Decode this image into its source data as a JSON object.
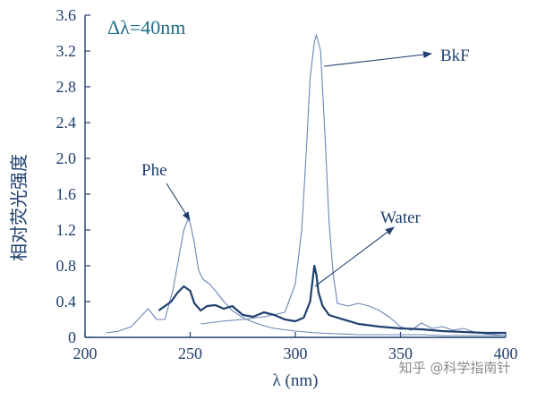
{
  "chart_data": {
    "type": "line",
    "annotation_title": "Δλ=40nm",
    "xlabel": "λ (nm)",
    "ylabel": "相对荧光强度",
    "xlim": [
      200,
      400
    ],
    "ylim": [
      0,
      3.6
    ],
    "x_ticks": [
      200,
      250,
      300,
      350,
      400
    ],
    "y_ticks": [
      0,
      0.4,
      0.8,
      1.2,
      1.6,
      2.0,
      2.4,
      2.8,
      3.2,
      3.6
    ],
    "x_tick_labels": [
      "200",
      "250",
      "300",
      "350",
      "400"
    ],
    "y_tick_labels": [
      "0",
      "0.4",
      "0.8",
      "1.2",
      "1.6",
      "2.0",
      "2.4",
      "2.8",
      "3.2",
      "3.6"
    ],
    "series": [
      {
        "name": "Phe",
        "color": "#6b86b5",
        "width": 1.1,
        "x": [
          210,
          216,
          222,
          226,
          230,
          234,
          238,
          242,
          245,
          247,
          249,
          250,
          252,
          254,
          256,
          259,
          262,
          266,
          270,
          275,
          280,
          285,
          290,
          300,
          310,
          320,
          330,
          340,
          350,
          360,
          370,
          380,
          390,
          400
        ],
        "y": [
          0.05,
          0.07,
          0.12,
          0.22,
          0.32,
          0.2,
          0.2,
          0.55,
          0.95,
          1.2,
          1.32,
          1.28,
          1.05,
          0.75,
          0.65,
          0.6,
          0.52,
          0.4,
          0.3,
          0.22,
          0.17,
          0.13,
          0.1,
          0.07,
          0.05,
          0.04,
          0.03,
          0.03,
          0.03,
          0.03,
          0.02,
          0.02,
          0.02,
          0.02
        ]
      },
      {
        "name": "BkF",
        "color": "#6b86b5",
        "width": 1.1,
        "x": [
          255,
          265,
          275,
          285,
          295,
          300,
          303,
          305,
          307,
          309,
          310,
          312,
          314,
          316,
          318,
          320,
          325,
          330,
          335,
          340,
          345,
          350,
          355,
          360,
          365,
          370,
          375,
          380,
          385,
          390,
          395,
          400
        ],
        "y": [
          0.15,
          0.18,
          0.2,
          0.23,
          0.28,
          0.6,
          1.2,
          2.0,
          2.9,
          3.3,
          3.38,
          3.2,
          2.3,
          1.3,
          0.7,
          0.38,
          0.35,
          0.38,
          0.35,
          0.3,
          0.22,
          0.12,
          0.08,
          0.16,
          0.1,
          0.12,
          0.08,
          0.1,
          0.06,
          0.04,
          0.03,
          0.02
        ]
      },
      {
        "name": "Water",
        "color": "#1f3f6e",
        "width": 2.2,
        "x": [
          235,
          238,
          241,
          244,
          247,
          250,
          252,
          255,
          258,
          262,
          266,
          270,
          275,
          280,
          285,
          290,
          295,
          300,
          304,
          307,
          309,
          310,
          311,
          313,
          316,
          320,
          330,
          340,
          350,
          360,
          370,
          380,
          390,
          400
        ],
        "y": [
          0.3,
          0.35,
          0.4,
          0.5,
          0.57,
          0.52,
          0.38,
          0.3,
          0.35,
          0.36,
          0.32,
          0.35,
          0.25,
          0.23,
          0.28,
          0.25,
          0.2,
          0.18,
          0.22,
          0.4,
          0.8,
          0.7,
          0.5,
          0.35,
          0.25,
          0.22,
          0.15,
          0.12,
          0.1,
          0.09,
          0.07,
          0.06,
          0.05,
          0.05
        ]
      }
    ],
    "annotations": [
      {
        "text": "Phe",
        "for": "Phe"
      },
      {
        "text": "BkF",
        "for": "BkF"
      },
      {
        "text": "Water",
        "for": "Water"
      }
    ]
  },
  "watermark": "知乎 @科学指南针"
}
